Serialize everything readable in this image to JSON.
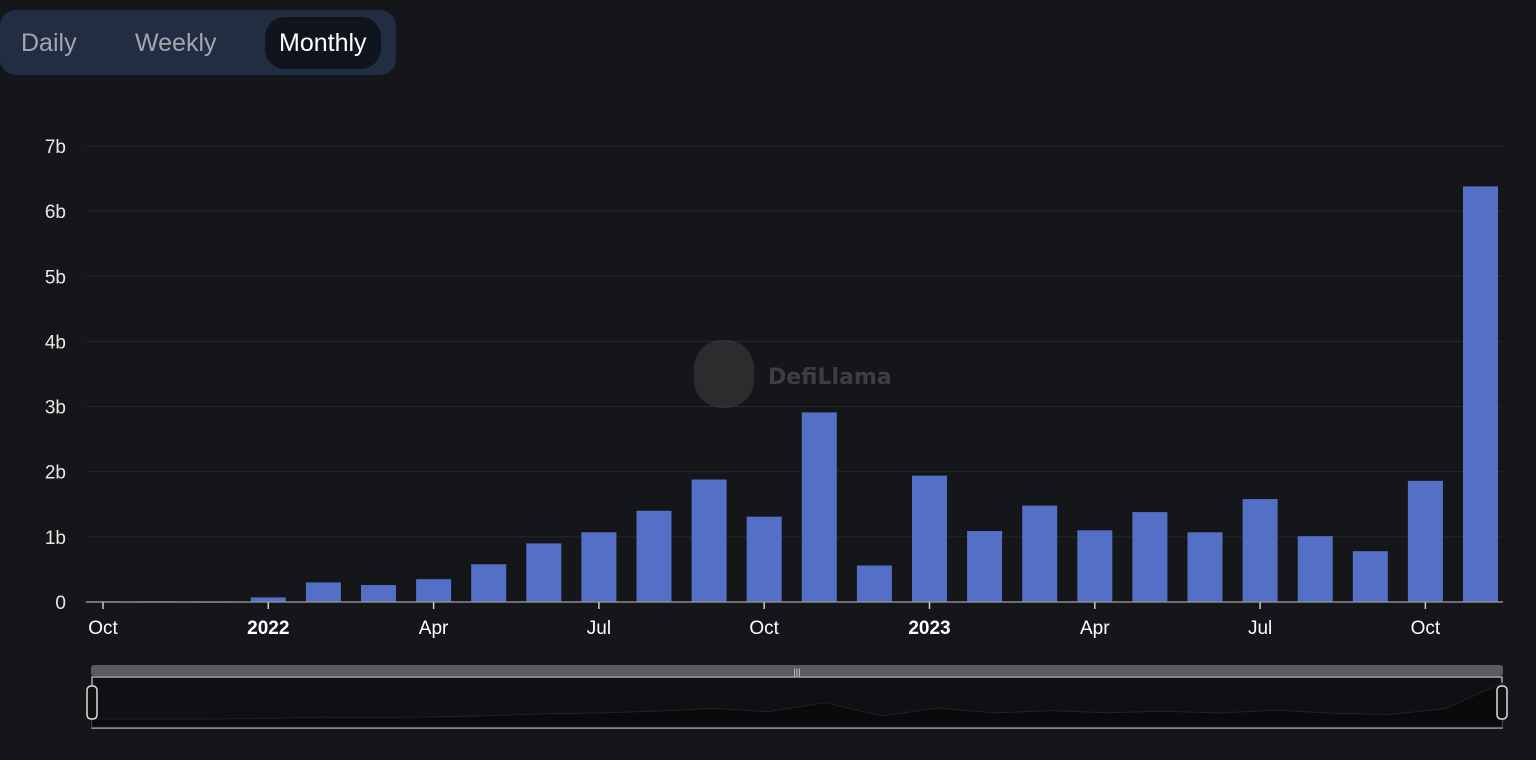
{
  "toggle": {
    "options": [
      "Daily",
      "Weekly",
      "Monthly"
    ],
    "selected": "Monthly"
  },
  "watermark": "DefiLlama",
  "colors": {
    "bar": "#5470c6",
    "background": "#151619",
    "grid": "#26272d"
  },
  "chart_data": {
    "type": "bar",
    "title": "",
    "xlabel": "",
    "ylabel": "",
    "ylim": [
      0,
      7
    ],
    "y_ticks": [
      "0",
      "1b",
      "2b",
      "3b",
      "4b",
      "5b",
      "6b",
      "7b"
    ],
    "x_ticks": [
      {
        "label": "Oct",
        "index": 0,
        "bold": false
      },
      {
        "label": "2022",
        "index": 3,
        "bold": true
      },
      {
        "label": "Apr",
        "index": 6,
        "bold": false
      },
      {
        "label": "Jul",
        "index": 9,
        "bold": false
      },
      {
        "label": "Oct",
        "index": 12,
        "bold": false
      },
      {
        "label": "2023",
        "index": 15,
        "bold": true
      },
      {
        "label": "Apr",
        "index": 18,
        "bold": false
      },
      {
        "label": "Jul",
        "index": 21,
        "bold": false
      },
      {
        "label": "Oct",
        "index": 24,
        "bold": false
      }
    ],
    "categories": [
      "2021-10",
      "2021-11",
      "2021-12",
      "2022-01",
      "2022-02",
      "2022-03",
      "2022-04",
      "2022-05",
      "2022-06",
      "2022-07",
      "2022-08",
      "2022-09",
      "2022-10",
      "2022-11",
      "2022-12",
      "2023-01",
      "2023-02",
      "2023-03",
      "2023-04",
      "2023-05",
      "2023-06",
      "2023-07",
      "2023-08",
      "2023-09",
      "2023-10",
      "2023-11"
    ],
    "values": [
      0.01,
      0.01,
      0.005,
      0.07,
      0.3,
      0.26,
      0.35,
      0.58,
      0.9,
      1.07,
      1.4,
      1.88,
      1.31,
      2.91,
      0.56,
      1.94,
      1.09,
      1.48,
      1.1,
      1.38,
      1.07,
      1.58,
      1.01,
      0.78,
      1.86,
      6.38
    ],
    "unit": "billions",
    "grid": true,
    "legend": "none"
  }
}
